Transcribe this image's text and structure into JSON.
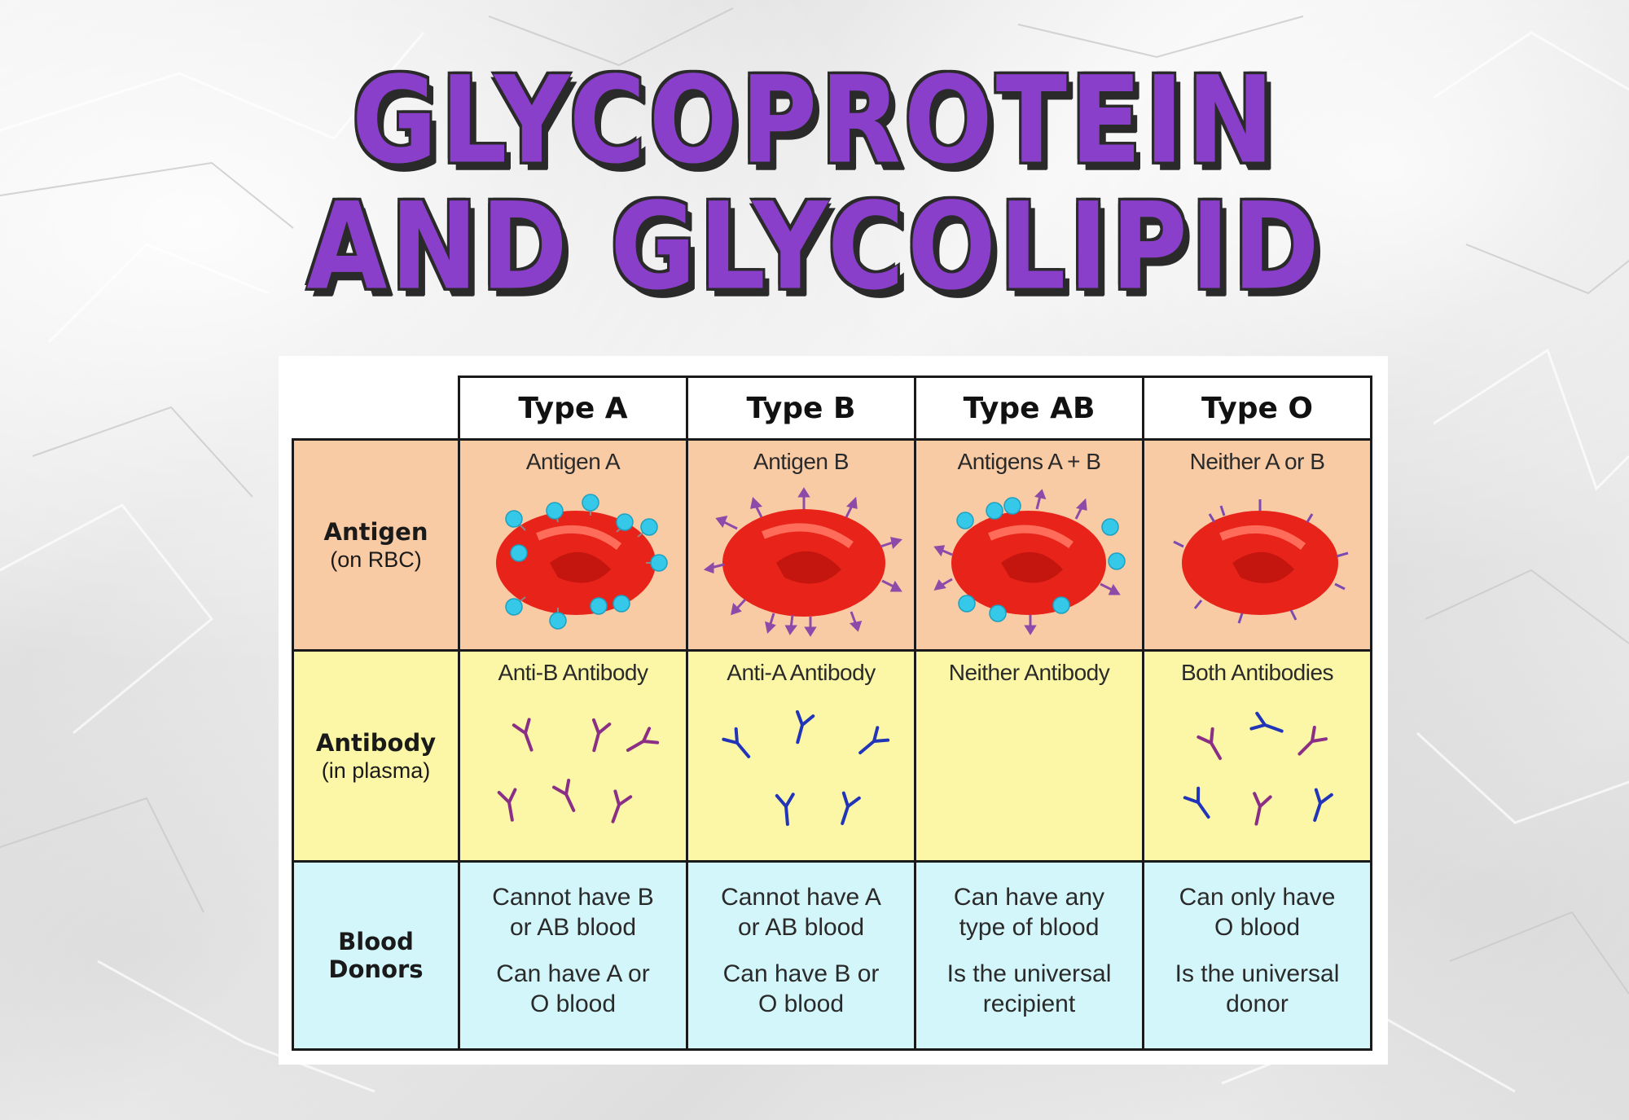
{
  "title": {
    "line1": "GLYCOPROTEIN",
    "line2": "AND GLYCOLIPID"
  },
  "table": {
    "columns": [
      "Type A",
      "Type B",
      "Type AB",
      "Type O"
    ],
    "rows": {
      "antigen": {
        "label": "Antigen",
        "sublabel": "(on RBC)",
        "captions": [
          "Antigen A",
          "Antigen B",
          "Antigens A + B",
          "Neither A or B"
        ]
      },
      "antibody": {
        "label": "Antibody",
        "sublabel": "(in plasma)",
        "captions": [
          "Anti-B Antibody",
          "Anti-A Antibody",
          "Neither Antibody",
          "Both Antibodies"
        ]
      },
      "donors": {
        "label_line1": "Blood",
        "label_line2": "Donors",
        "cells": [
          {
            "line1": "Cannot have B",
            "line2": "or AB blood",
            "line3": "Can have A or",
            "line4": "O blood"
          },
          {
            "line1": "Cannot have A",
            "line2": "or AB blood",
            "line3": "Can have B or",
            "line4": "O blood"
          },
          {
            "line1": "Can have any",
            "line2": "type of blood",
            "line3": "Is the universal",
            "line4": "recipient"
          },
          {
            "line1": "Can only have",
            "line2": "O blood",
            "line3": "Is the universal",
            "line4": "donor"
          }
        ]
      }
    }
  },
  "colors": {
    "title_fill": "#8a3fcb",
    "title_outline": "#2a2a2a",
    "antigen_row": "#f9cba4",
    "antibody_row": "#fbf7a6",
    "donor_row": "#d3f6fa",
    "rbc": "#e8231a",
    "antigen_a": "#36c8e8",
    "antigen_b": "#8e4aa8",
    "antibody_anti_b": "#8b2f86",
    "antibody_anti_a": "#2234b8"
  }
}
